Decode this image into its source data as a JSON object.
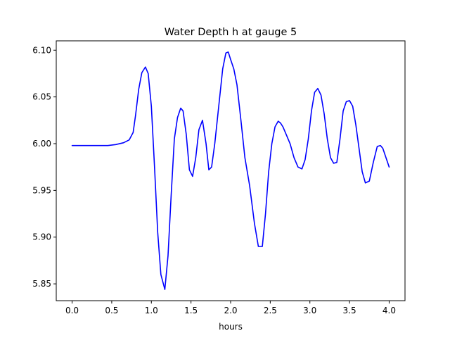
{
  "chart_data": {
    "type": "line",
    "title": "Water Depth h at gauge 5",
    "xlabel": "hours",
    "ylabel": "",
    "xlim": [
      -0.2,
      4.2
    ],
    "ylim": [
      5.832,
      6.11
    ],
    "xticks": [
      0.0,
      0.5,
      1.0,
      1.5,
      2.0,
      2.5,
      3.0,
      3.5,
      4.0
    ],
    "xtick_labels": [
      "0.0",
      "0.5",
      "1.0",
      "1.5",
      "2.0",
      "2.5",
      "3.0",
      "3.5",
      "4.0"
    ],
    "yticks": [
      5.85,
      5.9,
      5.95,
      6.0,
      6.05,
      6.1
    ],
    "ytick_labels": [
      "5.85",
      "5.90",
      "5.95",
      "6.00",
      "6.05",
      "6.10"
    ],
    "grid": false,
    "series": [
      {
        "name": "h",
        "color": "#0000ff",
        "x": [
          0.0,
          0.3,
          0.45,
          0.55,
          0.65,
          0.72,
          0.77,
          0.8,
          0.84,
          0.88,
          0.925,
          0.96,
          1.0,
          1.04,
          1.08,
          1.12,
          1.17,
          1.21,
          1.25,
          1.29,
          1.33,
          1.37,
          1.4,
          1.44,
          1.48,
          1.52,
          1.56,
          1.6,
          1.645,
          1.69,
          1.725,
          1.76,
          1.8,
          1.85,
          1.9,
          1.94,
          1.97,
          2.0,
          2.04,
          2.08,
          2.13,
          2.18,
          2.24,
          2.3,
          2.35,
          2.4,
          2.44,
          2.48,
          2.52,
          2.56,
          2.6,
          2.63,
          2.66,
          2.7,
          2.75,
          2.8,
          2.85,
          2.9,
          2.94,
          2.98,
          3.02,
          3.06,
          3.1,
          3.14,
          3.18,
          3.22,
          3.26,
          3.3,
          3.34,
          3.38,
          3.42,
          3.46,
          3.5,
          3.54,
          3.58,
          3.62,
          3.66,
          3.7,
          3.75,
          3.8,
          3.85,
          3.89,
          3.92,
          3.96,
          4.0
        ],
        "y": [
          5.998,
          5.998,
          5.998,
          5.999,
          6.001,
          6.004,
          6.012,
          6.03,
          6.058,
          6.076,
          6.082,
          6.075,
          6.04,
          5.975,
          5.905,
          5.86,
          5.844,
          5.88,
          5.945,
          6.005,
          6.028,
          6.038,
          6.035,
          6.01,
          5.972,
          5.965,
          5.985,
          6.015,
          6.025,
          6.0,
          5.972,
          5.975,
          6.0,
          6.04,
          6.08,
          6.097,
          6.098,
          6.09,
          6.08,
          6.063,
          6.025,
          5.985,
          5.955,
          5.915,
          5.89,
          5.89,
          5.925,
          5.97,
          6.0,
          6.018,
          6.024,
          6.022,
          6.018,
          6.01,
          6.0,
          5.985,
          5.975,
          5.973,
          5.983,
          6.005,
          6.035,
          6.055,
          6.059,
          6.052,
          6.032,
          6.005,
          5.985,
          5.979,
          5.98,
          6.005,
          6.035,
          6.045,
          6.046,
          6.04,
          6.02,
          5.995,
          5.97,
          5.958,
          5.96,
          5.98,
          5.997,
          5.998,
          5.995,
          5.985,
          5.975
        ]
      }
    ]
  }
}
